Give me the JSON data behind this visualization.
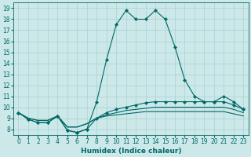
{
  "title": "",
  "xlabel": "Humidex (Indice chaleur)",
  "background_color": "#cce8e8",
  "grid_color": "#aad0d0",
  "line_color": "#006868",
  "xlim": [
    -0.5,
    23.5
  ],
  "ylim": [
    7.5,
    19.5
  ],
  "xticks": [
    0,
    1,
    2,
    3,
    4,
    5,
    6,
    7,
    8,
    9,
    10,
    11,
    12,
    13,
    14,
    15,
    16,
    17,
    18,
    19,
    20,
    21,
    22,
    23
  ],
  "yticks": [
    8,
    9,
    10,
    11,
    12,
    13,
    14,
    15,
    16,
    17,
    18,
    19
  ],
  "series": [
    [
      9.5,
      8.9,
      8.6,
      8.6,
      9.2,
      7.9,
      7.7,
      8.0,
      10.5,
      14.3,
      17.5,
      18.8,
      18.0,
      18.0,
      18.8,
      18.0,
      15.5,
      12.5,
      11.0,
      10.5,
      10.5,
      11.0,
      10.5,
      9.8
    ],
    [
      9.5,
      8.9,
      8.6,
      8.6,
      9.2,
      7.9,
      7.7,
      8.0,
      9.0,
      9.5,
      9.8,
      10.0,
      10.2,
      10.4,
      10.5,
      10.5,
      10.5,
      10.5,
      10.5,
      10.5,
      10.5,
      10.5,
      10.2,
      9.8
    ],
    [
      9.5,
      9.0,
      8.8,
      8.8,
      9.2,
      8.2,
      8.2,
      8.5,
      9.0,
      9.3,
      9.5,
      9.7,
      9.8,
      9.9,
      10.0,
      10.0,
      10.0,
      10.0,
      10.0,
      10.0,
      10.0,
      10.0,
      9.8,
      9.5
    ],
    [
      9.5,
      9.0,
      8.8,
      8.8,
      9.2,
      8.2,
      8.2,
      8.5,
      9.0,
      9.2,
      9.3,
      9.4,
      9.5,
      9.6,
      9.6,
      9.6,
      9.6,
      9.6,
      9.6,
      9.6,
      9.6,
      9.6,
      9.4,
      9.2
    ]
  ],
  "markers": [
    true,
    true,
    false,
    false
  ],
  "tick_fontsize": 5.5,
  "xlabel_fontsize": 6.5
}
